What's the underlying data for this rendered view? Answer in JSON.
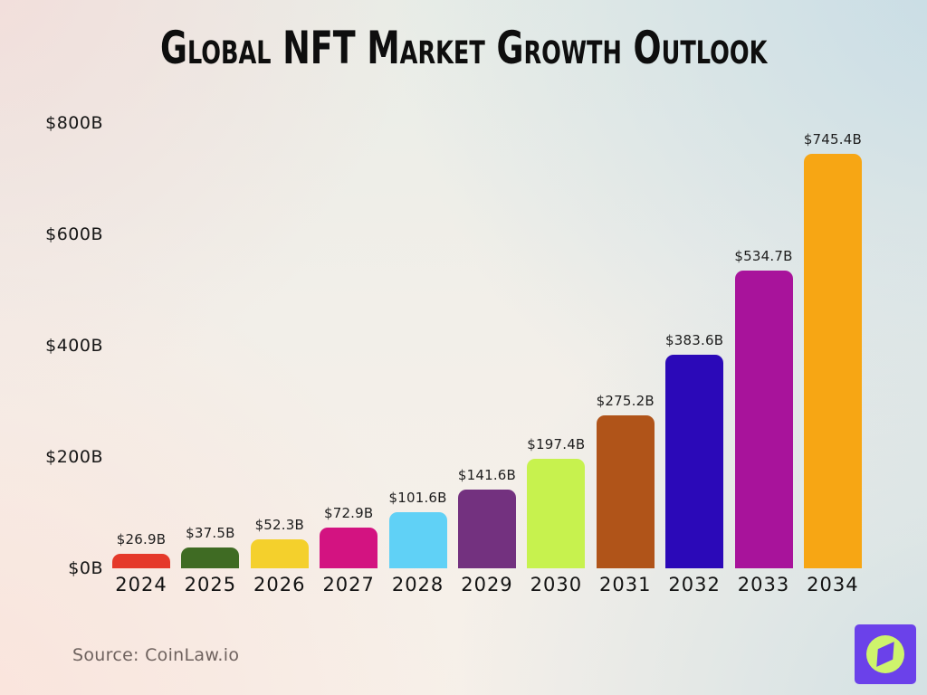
{
  "title": "Global NFT Market Growth Outlook",
  "source": "Source: CoinLaw.io",
  "logo": {
    "name": "coinlaw-compass-logo",
    "bg_color": "#6B41EA",
    "circle_color": "#CEF46C",
    "needle_color": "#6B41EA"
  },
  "colors": {
    "title_text": "#0E0E0E",
    "value_label_text": "#1D1D1D",
    "axis_text": "#161616",
    "year_text": "#121212",
    "source_text": "#6E625E"
  },
  "chart_data": {
    "type": "bar",
    "title": "Global NFT Market Growth Outlook",
    "categories": [
      "2024",
      "2025",
      "2026",
      "2027",
      "2028",
      "2029",
      "2030",
      "2031",
      "2032",
      "2033",
      "2034"
    ],
    "values": [
      26.9,
      37.5,
      52.3,
      72.9,
      101.6,
      141.6,
      197.4,
      275.2,
      383.6,
      534.7,
      745.4
    ],
    "value_labels": [
      "$26.9B",
      "$37.5B",
      "$52.3B",
      "$72.9B",
      "$101.6B",
      "$141.6B",
      "$197.4B",
      "$275.2B",
      "$383.6B",
      "$534.7B",
      "$745.4B"
    ],
    "bar_colors": [
      "#E5392A",
      "#3F6B23",
      "#F4D02C",
      "#D31381",
      "#60D1F6",
      "#73317F",
      "#C7F24E",
      "#B05419",
      "#2B09B8",
      "#A8139B",
      "#F7A614"
    ],
    "xlabel": "",
    "ylabel": "",
    "ylim": [
      0,
      800
    ],
    "y_ticks": {
      "values": [
        0,
        200,
        400,
        600,
        800
      ],
      "labels": [
        "$0B",
        "$200B",
        "$400B",
        "$600B",
        "$800B"
      ]
    },
    "grid": false,
    "legend": null
  }
}
